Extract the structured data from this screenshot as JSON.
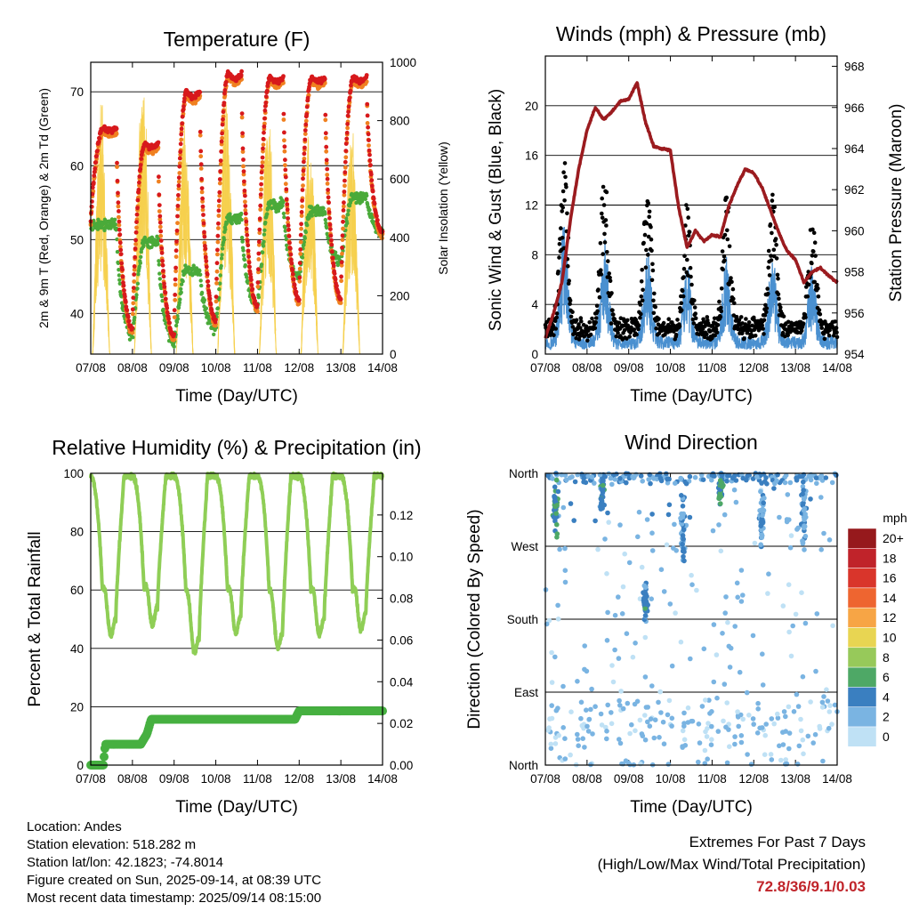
{
  "chart_data": [
    {
      "type": "line",
      "title": "Temperature (F)",
      "xlabel": "Time (Day/UTC)",
      "ylabel": "2m & 9m T (Red, Orange) & 2m Td (Green)",
      "ylabel_right": "Solar Insolation (Yellow)",
      "x_ticks": [
        "07/08",
        "08/08",
        "09/08",
        "10/08",
        "11/08",
        "12/08",
        "13/08",
        "14/08"
      ],
      "ylim": [
        34.5,
        74
      ],
      "y_ticks": [
        40,
        50,
        60,
        70
      ],
      "ylim_right": [
        0,
        1000
      ],
      "y_ticks_right": [
        0,
        200,
        400,
        600,
        800,
        1000
      ],
      "series": [
        {
          "name": "2m T",
          "color": "#d7191c",
          "daily_max": [
            65,
            63,
            70,
            72.5,
            72,
            72,
            72
          ],
          "daily_min": [
            52.5,
            38,
            37,
            39,
            41,
            42,
            42,
            51
          ]
        },
        {
          "name": "9m T",
          "color": "#f08020"
        },
        {
          "name": "2m Td",
          "color": "#4aaa3a",
          "daily_max": [
            52,
            50,
            46,
            53,
            55,
            54,
            56
          ],
          "daily_min": [
            52,
            37,
            36,
            38,
            41,
            45,
            47,
            51
          ]
        },
        {
          "name": "Solar Insolation",
          "color": "#f6d04d",
          "daily_peak": [
            880,
            1000,
            850,
            950,
            880,
            850,
            850
          ]
        }
      ]
    },
    {
      "type": "scatter",
      "title": "Winds (mph) & Pressure (mb)",
      "xlabel": "Time (Day/UTC)",
      "ylabel": "Sonic Wind & Gust (Blue, Black)",
      "ylabel_right": "Station Pressure (Maroon)",
      "x_ticks": [
        "07/08",
        "08/08",
        "09/08",
        "10/08",
        "11/08",
        "12/08",
        "13/08",
        "14/08"
      ],
      "ylim": [
        0,
        24
      ],
      "y_ticks": [
        0,
        4,
        8,
        12,
        16,
        20
      ],
      "ylim_right": [
        954,
        968.5
      ],
      "y_ticks_right": [
        954,
        956,
        958,
        960,
        962,
        964,
        966,
        968
      ],
      "series": [
        {
          "name": "Sonic Wind",
          "color": "#4a90d0"
        },
        {
          "name": "Gust",
          "color": "#000000"
        },
        {
          "name": "Station Pressure",
          "color": "#9b1b1f",
          "x": [
            0,
            0.2,
            0.4,
            0.6,
            0.8,
            1.0,
            1.2,
            1.4,
            1.6,
            1.8,
            2.0,
            2.2,
            2.4,
            2.6,
            2.8,
            3.0,
            3.2,
            3.4,
            3.6,
            3.8,
            4.0,
            4.2,
            4.4,
            4.6,
            4.8,
            5.0,
            5.2,
            5.4,
            5.6,
            5.8,
            6.0,
            6.2,
            6.4,
            6.6,
            6.8,
            7.0
          ],
          "values": [
            954.8,
            956.0,
            957.5,
            960.5,
            963.0,
            964.9,
            966.0,
            965.4,
            965.8,
            966.3,
            966.4,
            967.2,
            965.3,
            964.1,
            964.0,
            963.9,
            961.1,
            959.2,
            960.0,
            959.5,
            959.8,
            959.7,
            961.2,
            962.2,
            963.0,
            962.8,
            962.1,
            961.0,
            959.9,
            959.0,
            958.6,
            957.5,
            958.0,
            958.2,
            957.8,
            957.5
          ]
        }
      ]
    },
    {
      "type": "line",
      "title": "Relative Humidity (%) & Precipitation (in)",
      "xlabel": "Time (Day/UTC)",
      "ylabel": "Percent & Total Rainfall",
      "x_ticks": [
        "07/08",
        "08/08",
        "09/08",
        "10/08",
        "11/08",
        "12/08",
        "13/08",
        "14/08"
      ],
      "ylim": [
        0,
        100
      ],
      "y_ticks": [
        0,
        20,
        40,
        60,
        80,
        100
      ],
      "ylim_right": [
        0,
        0.14
      ],
      "y_ticks_right": [
        "0.00",
        "0.02",
        "0.04",
        "0.06",
        "0.08",
        "0.10",
        "0.12"
      ],
      "series": [
        {
          "name": "Relative Humidity",
          "color": "#8fce56",
          "daily_min": [
            46,
            50,
            39,
            47,
            41,
            46,
            48
          ]
        },
        {
          "name": "Total Precipitation",
          "color": "#46b040",
          "x": [
            0,
            0.3,
            0.35,
            1.2,
            1.35,
            1.45,
            2.0,
            3.0,
            4.0,
            4.9,
            5.0,
            6.0,
            7.0
          ],
          "values": [
            0.0,
            0.0,
            0.01,
            0.01,
            0.015,
            0.022,
            0.022,
            0.022,
            0.022,
            0.022,
            0.026,
            0.026,
            0.026
          ]
        }
      ]
    },
    {
      "type": "scatter",
      "title": "Wind Direction",
      "xlabel": "Time (Day/UTC)",
      "ylabel": "Direction (Colored By Speed)",
      "x_ticks": [
        "07/08",
        "08/08",
        "09/08",
        "10/08",
        "11/08",
        "12/08",
        "13/08",
        "14/08"
      ],
      "y_ticks": [
        "North",
        "East",
        "South",
        "West",
        "North"
      ],
      "ylim": [
        0,
        360
      ],
      "colorbar": {
        "title": "mph",
        "labels": [
          "20+",
          "18",
          "16",
          "14",
          "12",
          "10",
          "8",
          "6",
          "4",
          "2",
          "0"
        ],
        "colors": [
          "#96191c",
          "#c0232a",
          "#d9352b",
          "#ee6530",
          "#f7a545",
          "#e8d552",
          "#97c95a",
          "#4ea866",
          "#3a7fc0",
          "#7ab4e2",
          "#bfe1f5"
        ]
      }
    }
  ],
  "info": {
    "location": "Location: Andes",
    "elevation": "Station elevation: 518.282 m",
    "latlon": "Station lat/lon: 42.1823; -74.8014",
    "created": "Figure created on Sun, 2025-09-14, at 08:39 UTC",
    "timestamp": "Most recent data timestamp: 2025/09/14 08:15:00"
  },
  "extremes": {
    "title": "Extremes For Past 7 Days",
    "subtitle": "(High/Low/Max Wind/Total Precipitation)",
    "value": "72.8/36/9.1/0.03"
  }
}
